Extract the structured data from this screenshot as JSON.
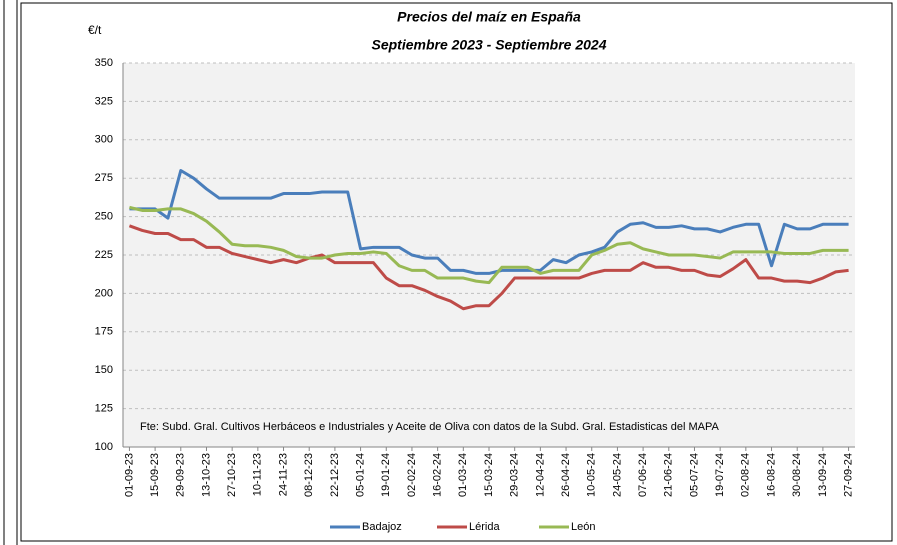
{
  "chart_data": {
    "type": "line",
    "title": "Precios del maíz en España",
    "subtitle": "Septiembre 2023 - Septiembre 2024",
    "y_label": "€/t",
    "note": "Fte: Subd. Gral. Cultivos Herbáceos e Industriales y Aceite de Oliva con datos de la Subd. Gral. Estadisticas del MAPA",
    "categories": [
      "01-09-23",
      null,
      "15-09-23",
      null,
      "29-09-23",
      null,
      "13-10-23",
      null,
      "27-10-23",
      null,
      "10-11-23",
      null,
      "24-11-23",
      null,
      "08-12-23",
      null,
      "22-12-23",
      null,
      "05-01-24",
      null,
      "19-01-24",
      null,
      "02-02-24",
      null,
      "16-02-24",
      null,
      "01-03-24",
      null,
      "15-03-24",
      null,
      "29-03-24",
      null,
      "12-04-24",
      null,
      "26-04-24",
      null,
      "10-05-24",
      null,
      "24-05-24",
      null,
      "07-06-24",
      null,
      "21-06-24",
      null,
      "05-07-24",
      null,
      "19-07-24",
      null,
      "02-08-24",
      null,
      "16-08-24",
      null,
      "30-08-24",
      null,
      "13-09-24",
      null,
      "27-09-24"
    ],
    "series": [
      {
        "name": "Badajoz",
        "color": "#4a7ebb",
        "values": [
          255,
          255,
          255,
          249,
          280,
          275,
          268,
          262,
          262,
          262,
          262,
          262,
          265,
          265,
          265,
          266,
          266,
          266,
          229,
          230,
          230,
          230,
          225,
          223,
          223,
          215,
          215,
          213,
          213,
          215,
          215,
          215,
          215,
          222,
          220,
          225,
          227,
          230,
          240,
          245,
          246,
          243,
          243,
          244,
          242,
          242,
          240,
          243,
          245,
          245,
          218,
          245,
          242,
          242,
          245,
          245,
          245
        ]
      },
      {
        "name": "Lérida",
        "color": "#be4b48",
        "values": [
          244,
          241,
          239,
          239,
          235,
          235,
          230,
          230,
          226,
          224,
          222,
          220,
          222,
          220,
          223,
          225,
          220,
          220,
          220,
          220,
          210,
          205,
          205,
          202,
          198,
          195,
          190,
          192,
          192,
          200,
          210,
          210,
          210,
          210,
          210,
          210,
          213,
          215,
          215,
          215,
          220,
          217,
          217,
          215,
          215,
          212,
          211,
          216,
          222,
          210,
          210,
          208,
          208,
          207,
          210,
          214,
          215
        ]
      },
      {
        "name": "León",
        "color": "#98b954",
        "values": [
          256,
          254,
          254,
          255,
          255,
          252,
          247,
          240,
          232,
          231,
          231,
          230,
          228,
          224,
          223,
          223,
          225,
          226,
          226,
          227,
          226,
          218,
          215,
          215,
          210,
          210,
          210,
          208,
          207,
          217,
          217,
          217,
          213,
          215,
          215,
          215,
          225,
          228,
          232,
          233,
          229,
          227,
          225,
          225,
          225,
          224,
          223,
          227,
          227,
          227,
          227,
          226,
          226,
          226,
          228,
          228,
          228
        ]
      }
    ],
    "ylim": [
      100,
      350
    ],
    "yticks": [
      100,
      125,
      150,
      175,
      200,
      225,
      250,
      275,
      300,
      325,
      350
    ],
    "grid": true,
    "legend": "bottom"
  }
}
